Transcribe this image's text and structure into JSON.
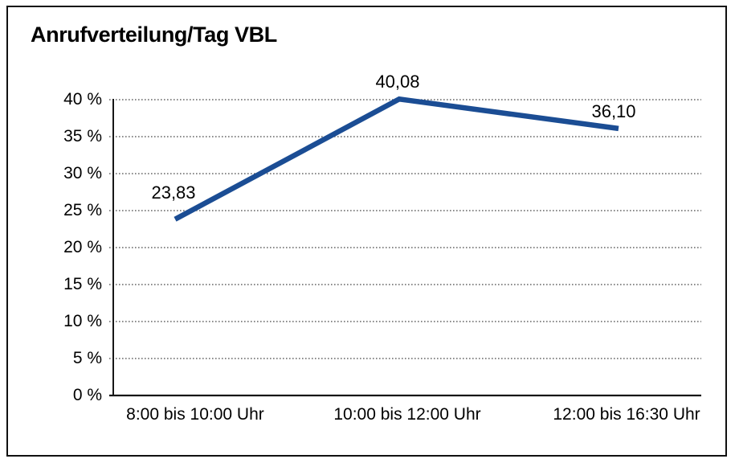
{
  "window": {
    "background": "#ffffff",
    "frame_border_color": "#101010"
  },
  "chart_data": {
    "type": "line",
    "title": "Anrufverteilung/Tag VBL",
    "categories": [
      "8:00 bis 10:00 Uhr",
      "10:00 bis 12:00 Uhr",
      "12:00 bis 16:30 Uhr"
    ],
    "values": [
      23.83,
      40.08,
      36.1
    ],
    "point_labels": [
      "23,83",
      "40,08",
      "36,10"
    ],
    "y_ticks": [
      "0 %",
      "5 %",
      "10 %",
      "15 %",
      "20 %",
      "25 %",
      "30 %",
      "35 %",
      "40 %"
    ],
    "ylim": [
      0,
      40
    ],
    "y_tick_step": 5,
    "y_unit": "%",
    "xlabel": "",
    "ylabel": "",
    "grid": "horizontal-dotted",
    "legend": "none",
    "line_color": "#1b4d94",
    "grid_color": "#474747",
    "axis_color": "#161616",
    "text_color": "#000000"
  }
}
